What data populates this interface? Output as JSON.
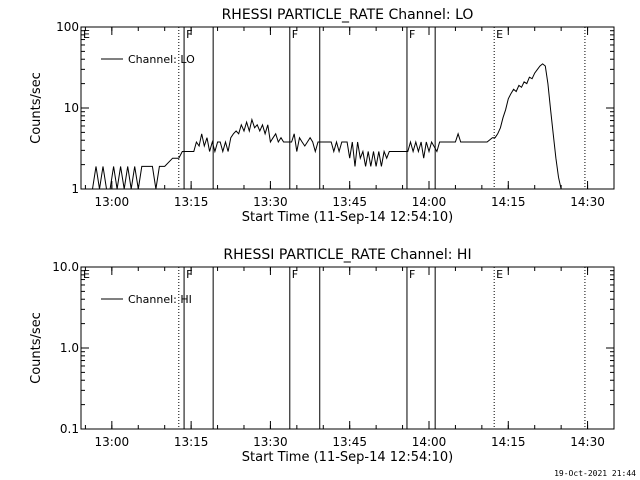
{
  "footer_timestamp": "19-Oct-2021 21:44",
  "chart_data": [
    {
      "type": "line",
      "title": "RHESSI PARTICLE_RATE Channel: LO",
      "xlabel": "Start Time (11-Sep-14 12:54:10)",
      "ylabel": "Counts/sec",
      "y_scale": "log",
      "ylim": [
        1,
        100
      ],
      "y_ticks": [
        1,
        10,
        100
      ],
      "y_tick_labels": [
        "1",
        "10",
        "100"
      ],
      "xlim": [
        "12:54:10",
        "14:35:00"
      ],
      "x_ticks": [
        "13:00",
        "13:15",
        "13:30",
        "13:45",
        "14:00",
        "14:15",
        "14:30"
      ],
      "legend": {
        "label": "Channel: LO",
        "placement": "top-left"
      },
      "markers": [
        {
          "time": "12:54:10",
          "label": "E",
          "style": "none"
        },
        {
          "time": "13:12:40",
          "label": "",
          "style": "dotted"
        },
        {
          "time": "13:13:40",
          "label": "F",
          "style": "solid"
        },
        {
          "time": "13:19:10",
          "label": "",
          "style": "solid"
        },
        {
          "time": "13:33:40",
          "label": "F",
          "style": "solid"
        },
        {
          "time": "13:39:20",
          "label": "",
          "style": "solid"
        },
        {
          "time": "13:55:50",
          "label": "F",
          "style": "solid"
        },
        {
          "time": "14:01:10",
          "label": "",
          "style": "solid"
        },
        {
          "time": "14:12:20",
          "label": "E",
          "style": "dotted"
        },
        {
          "time": "14:29:30",
          "label": "",
          "style": "dotted"
        }
      ],
      "series": [
        {
          "name": "Channel: LO",
          "x": [
            "12:56:20",
            "12:57:00",
            "12:57:40",
            "12:58:20",
            "12:59:00",
            "12:59:40",
            "13:00:20",
            "13:01:00",
            "13:01:40",
            "13:02:20",
            "13:03:00",
            "13:03:40",
            "13:04:20",
            "13:05:00",
            "13:05:40",
            "13:06:20",
            "13:07:00",
            "13:07:40",
            "13:08:20",
            "13:09:00",
            "13:10:00",
            "13:11:30",
            "13:12:40",
            "13:13:20",
            "13:14:00",
            "13:15:00",
            "13:15:30",
            "13:16:00",
            "13:16:30",
            "13:17:00",
            "13:17:30",
            "13:18:00",
            "13:18:30",
            "13:19:00",
            "13:19:30",
            "13:20:00",
            "13:20:30",
            "13:21:00",
            "13:21:30",
            "13:22:00",
            "13:22:30",
            "13:23:00",
            "13:23:30",
            "13:24:00",
            "13:24:30",
            "13:25:00",
            "13:25:30",
            "13:26:00",
            "13:26:30",
            "13:27:00",
            "13:27:30",
            "13:28:00",
            "13:28:30",
            "13:29:00",
            "13:29:30",
            "13:30:00",
            "13:30:30",
            "13:31:00",
            "13:31:30",
            "13:32:00",
            "13:32:30",
            "13:33:00",
            "13:34:00",
            "13:34:30",
            "13:35:00",
            "13:35:30",
            "13:36:00",
            "13:36:30",
            "13:37:00",
            "13:37:30",
            "13:38:00",
            "13:38:30",
            "13:39:00",
            "13:39:30",
            "13:40:00",
            "13:40:30",
            "13:41:00",
            "13:41:30",
            "13:42:00",
            "13:42:30",
            "13:43:00",
            "13:43:30",
            "13:44:00",
            "13:44:30",
            "13:45:00",
            "13:45:30",
            "13:46:00",
            "13:46:30",
            "13:47:00",
            "13:47:30",
            "13:48:00",
            "13:48:30",
            "13:49:00",
            "13:49:30",
            "13:50:00",
            "13:50:30",
            "13:51:00",
            "13:51:30",
            "13:52:00",
            "13:52:30",
            "13:53:00",
            "13:53:30",
            "13:54:00",
            "13:54:30",
            "13:55:00",
            "13:56:00",
            "13:56:30",
            "13:57:00",
            "13:57:30",
            "13:58:00",
            "13:58:30",
            "13:59:00",
            "13:59:30",
            "14:00:00",
            "14:00:30",
            "14:01:30",
            "14:02:00",
            "14:02:30",
            "14:03:00",
            "14:03:30",
            "14:04:00",
            "14:04:30",
            "14:05:00",
            "14:05:30",
            "14:06:00",
            "14:07:00",
            "14:08:00",
            "14:09:00",
            "14:10:00",
            "14:11:00",
            "14:12:00",
            "14:12:30",
            "14:13:00",
            "14:13:30",
            "14:14:00",
            "14:14:30",
            "14:15:00",
            "14:15:30",
            "14:16:00",
            "14:16:30",
            "14:17:00",
            "14:17:30",
            "14:18:00",
            "14:18:30",
            "14:19:00",
            "14:19:30",
            "14:20:00",
            "14:20:30",
            "14:21:00",
            "14:21:30",
            "14:22:00",
            "14:22:30",
            "14:23:00",
            "14:23:30",
            "14:24:00",
            "14:24:30",
            "14:25:00",
            "14:25:30",
            "14:26:00",
            "14:26:30",
            "14:27:00"
          ],
          "values": [
            1.0,
            1.9,
            1.0,
            1.9,
            1.0,
            1.0,
            1.9,
            1.0,
            1.9,
            1.0,
            1.9,
            1.0,
            1.9,
            1.0,
            1.9,
            1.9,
            1.9,
            1.9,
            1.0,
            1.9,
            1.9,
            2.4,
            2.4,
            2.9,
            2.9,
            2.9,
            2.9,
            3.8,
            3.4,
            4.8,
            3.4,
            4.3,
            2.9,
            3.8,
            2.9,
            3.8,
            3.8,
            2.9,
            3.8,
            2.9,
            4.3,
            4.8,
            5.2,
            4.8,
            6.2,
            5.2,
            6.7,
            5.2,
            7.2,
            5.7,
            6.2,
            5.2,
            6.2,
            4.8,
            6.2,
            3.8,
            4.3,
            4.8,
            3.8,
            4.3,
            3.8,
            3.8,
            3.8,
            4.8,
            2.9,
            4.3,
            3.8,
            3.4,
            3.8,
            4.3,
            3.8,
            2.9,
            3.8,
            3.8,
            3.8,
            3.8,
            3.8,
            3.8,
            2.9,
            3.8,
            2.9,
            3.8,
            3.8,
            3.8,
            2.4,
            3.8,
            1.9,
            3.8,
            2.4,
            2.9,
            1.9,
            2.9,
            1.9,
            2.9,
            1.9,
            2.9,
            1.9,
            2.9,
            2.4,
            2.9,
            2.9,
            2.9,
            2.9,
            2.9,
            2.9,
            2.9,
            3.8,
            2.9,
            3.8,
            2.9,
            3.8,
            2.4,
            3.8,
            2.9,
            3.8,
            2.9,
            3.8,
            3.8,
            3.8,
            3.8,
            3.8,
            3.8,
            3.8,
            4.8,
            3.8,
            3.8,
            3.8,
            3.8,
            3.8,
            3.8,
            4.3,
            4.3,
            4.8,
            5.7,
            7.6,
            9.5,
            13.0,
            15.0,
            17.0,
            16.0,
            19.0,
            18.0,
            21.0,
            20.0,
            24.0,
            23.0,
            27.0,
            30.0,
            33.0,
            35.0,
            33.0,
            20.0,
            9.5,
            4.8,
            2.4,
            1.4,
            1.0,
            1.0,
            1.0,
            1.0,
            1.0
          ]
        }
      ]
    },
    {
      "type": "line",
      "title": "RHESSI PARTICLE_RATE Channel: HI",
      "xlabel": "Start Time (11-Sep-14 12:54:10)",
      "ylabel": "Counts/sec",
      "y_scale": "log",
      "ylim": [
        0.1,
        10
      ],
      "y_ticks": [
        0.1,
        1,
        10
      ],
      "y_tick_labels": [
        "0.1",
        "1.0",
        "10.0"
      ],
      "xlim": [
        "12:54:10",
        "14:35:00"
      ],
      "x_ticks": [
        "13:00",
        "13:15",
        "13:30",
        "13:45",
        "14:00",
        "14:15",
        "14:30"
      ],
      "legend": {
        "label": "Channel: HI",
        "placement": "top-left"
      },
      "markers": [
        {
          "time": "12:54:10",
          "label": "E",
          "style": "none"
        },
        {
          "time": "13:12:40",
          "label": "",
          "style": "dotted"
        },
        {
          "time": "13:13:40",
          "label": "F",
          "style": "solid"
        },
        {
          "time": "13:19:10",
          "label": "",
          "style": "solid"
        },
        {
          "time": "13:33:40",
          "label": "F",
          "style": "solid"
        },
        {
          "time": "13:39:20",
          "label": "",
          "style": "solid"
        },
        {
          "time": "13:55:50",
          "label": "F",
          "style": "solid"
        },
        {
          "time": "14:01:10",
          "label": "",
          "style": "solid"
        },
        {
          "time": "14:12:20",
          "label": "E",
          "style": "dotted"
        },
        {
          "time": "14:29:30",
          "label": "",
          "style": "dotted"
        }
      ],
      "series": [
        {
          "name": "Channel: HI",
          "x": [],
          "values": []
        }
      ]
    }
  ]
}
